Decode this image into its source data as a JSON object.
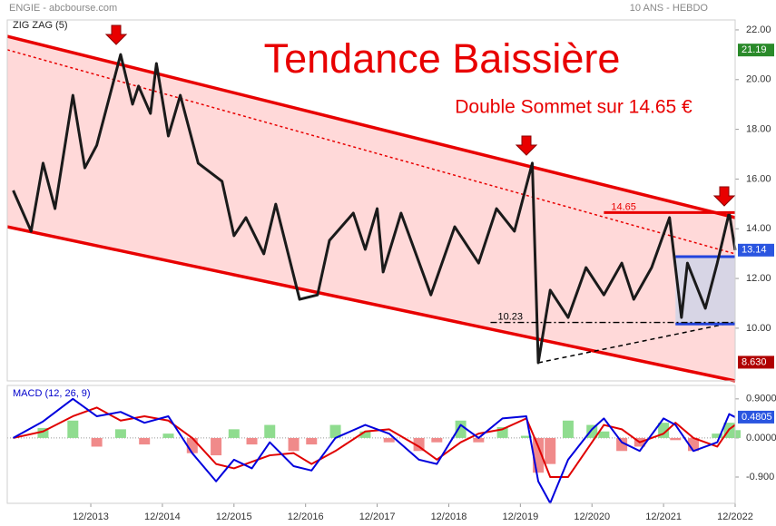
{
  "chart_data": [
    {
      "type": "line",
      "title": "Tendance Baissière",
      "subtitle": "Double Sommet sur 14.65 €",
      "source": "ENGIE - abcbourse.com",
      "period": "10 ANS - HEBDO",
      "indicator": "ZIG ZAG (5)",
      "x": [
        "11/2012",
        "02/2013",
        "04/2013",
        "06/2013",
        "09/2013",
        "11/2013",
        "01/2014",
        "05/2014",
        "07/2014",
        "08/2014",
        "10/2014",
        "11/2014",
        "01/2015",
        "03/2015",
        "06/2015",
        "10/2015",
        "12/2015",
        "02/2016",
        "05/2016",
        "07/2016",
        "11/2016",
        "02/2017",
        "04/2017",
        "08/2017",
        "10/2017",
        "12/2017",
        "01/2018",
        "04/2018",
        "09/2018",
        "01/2019",
        "05/2019",
        "08/2019",
        "11/2019",
        "02/2020",
        "03/2020",
        "05/2020",
        "08/2020",
        "11/2020",
        "02/2021",
        "05/2021",
        "07/2021",
        "10/2021",
        "01/2022",
        "03/2022",
        "04/2022",
        "07/2022",
        "09/2022",
        "11/2022",
        "12/2022"
      ],
      "series": [
        {
          "color": "#1a1a1a",
          "values": [
            15.54,
            13.9,
            16.64,
            14.81,
            19.37,
            16.45,
            17.36,
            21.01,
            19.01,
            19.74,
            18.64,
            20.65,
            17.73,
            19.37,
            16.64,
            15.91,
            13.72,
            14.45,
            12.99,
            14.99,
            11.16,
            11.34,
            13.53,
            14.63,
            13.17,
            14.81,
            12.26,
            14.63,
            11.34,
            14.08,
            12.62,
            14.81,
            13.9,
            16.64,
            8.61,
            11.53,
            10.43,
            12.44,
            11.34,
            12.62,
            11.16,
            12.44,
            14.45,
            10.43,
            12.62,
            10.8,
            12.62,
            14.65,
            13.14
          ]
        }
      ],
      "xlim": [
        "10/2012",
        "12/2022"
      ],
      "ylim": [
        7.88,
        22.4
      ],
      "yticks": [
        {
          "value": 22,
          "label": "22.00"
        },
        {
          "value": 20,
          "label": "20.00"
        },
        {
          "value": 18,
          "label": "18.00"
        },
        {
          "value": 16,
          "label": "16.00"
        },
        {
          "value": 14,
          "label": "14.00"
        },
        {
          "value": 12,
          "label": "12.00"
        },
        {
          "value": 10,
          "label": "10.00"
        }
      ],
      "channel_fill": "#ffd9d9",
      "trendlines": [
        {
          "x": [
            "10/2012",
            "12/2022"
          ],
          "y": [
            21.74,
            14.45
          ],
          "color": "#e80000",
          "style": "solid"
        },
        {
          "x": [
            "10/2012",
            "12/2022"
          ],
          "y": [
            14.08,
            7.88
          ],
          "color": "#e80000",
          "style": "solid"
        },
        {
          "x": [
            "10/2012",
            "12/2022"
          ],
          "y": [
            21.2,
            12.99
          ],
          "color": "#e80000",
          "style": "dotted"
        },
        {
          "x": [
            "03/2020",
            "12/2022"
          ],
          "y": [
            8.61,
            10.25
          ],
          "color": "#000000",
          "style": "dashed"
        }
      ],
      "levels": [
        {
          "value": 14.65,
          "x": [
            "02/2021",
            "12/2022"
          ],
          "color": "#e80000",
          "style": "solid"
        },
        {
          "value": 10.23,
          "x": [
            "07/2019",
            "12/2022"
          ],
          "color": "#000000",
          "style": "dashdot"
        }
      ],
      "box": {
        "x": [
          "02/2022",
          "12/2022"
        ],
        "y": [
          10.17,
          12.88
        ],
        "color": "#2244dd"
      },
      "price_markers": [
        {
          "value": 21.19,
          "color": "#2a8a2a"
        },
        {
          "value": 13.14,
          "color": "#2a55e0"
        },
        {
          "value": 8.63,
          "label": "8.630",
          "color": "#b00000"
        }
      ]
    },
    {
      "type": "line",
      "title": "MACD (12, 26, 9)",
      "x": [
        "11/2012",
        "04/2013",
        "09/2013",
        "01/2014",
        "05/2014",
        "09/2014",
        "01/2015",
        "05/2015",
        "09/2015",
        "12/2015",
        "03/2016",
        "06/2016",
        "10/2016",
        "01/2017",
        "05/2017",
        "10/2017",
        "02/2018",
        "07/2018",
        "10/2018",
        "02/2019",
        "05/2019",
        "09/2019",
        "01/2020",
        "03/2020",
        "05/2020",
        "08/2020",
        "12/2020",
        "02/2021",
        "05/2021",
        "08/2021",
        "12/2021",
        "02/2022",
        "05/2022",
        "09/2022",
        "11/2022",
        "12/2022"
      ],
      "series": [
        {
          "type": "bar",
          "color": "#8fdc8f",
          "negative_color": "#f08a8a",
          "values": [
            0,
            0.23,
            0.4,
            -0.2,
            0.2,
            -0.15,
            0.1,
            -0.35,
            -0.4,
            0.2,
            -0.15,
            0.3,
            -0.3,
            -0.15,
            0.3,
            0.15,
            -0.1,
            -0.3,
            -0.1,
            0.4,
            -0.1,
            0.25,
            0.05,
            -0.8,
            -0.6,
            0.4,
            0.3,
            0.15,
            -0.3,
            -0.2,
            0.35,
            -0.05,
            -0.3,
            0.1,
            0.35,
            0.18
          ]
        },
        {
          "color": "#e00000",
          "values": [
            0,
            0.15,
            0.5,
            0.7,
            0.4,
            0.5,
            0.4,
            0,
            -0.6,
            -0.7,
            -0.55,
            -0.4,
            -0.35,
            -0.6,
            -0.3,
            0.15,
            0.2,
            -0.2,
            -0.5,
            -0.1,
            0.1,
            0.2,
            0.45,
            -0.2,
            -0.9,
            -0.9,
            -0.1,
            0.3,
            0.2,
            -0.1,
            0.1,
            0.35,
            0,
            -0.2,
            0.2,
            0.3
          ]
        },
        {
          "color": "#0000dd",
          "values": [
            0,
            0.38,
            0.9,
            0.5,
            0.6,
            0.35,
            0.5,
            -0.35,
            -1,
            -0.5,
            -0.7,
            -0.1,
            -0.65,
            -0.75,
            0,
            0.3,
            0.1,
            -0.5,
            -0.6,
            0.3,
            0,
            0.45,
            0.5,
            -1,
            -1.5,
            -0.5,
            0.2,
            0.45,
            -0.1,
            -0.3,
            0.45,
            0.3,
            -0.3,
            -0.1,
            0.55,
            0.48
          ]
        }
      ],
      "xlim": [
        "10/2012",
        "12/2022"
      ],
      "ylim": [
        -1.506,
        1.21
      ],
      "yticks": [
        {
          "value": 0.9,
          "label": "0.9000"
        },
        {
          "value": 0,
          "label": "0.0000"
        },
        {
          "value": -0.9,
          "label": "-0.900"
        }
      ],
      "xticks": [
        "12/2013",
        "12/2014",
        "12/2015",
        "12/2016",
        "12/2017",
        "12/2018",
        "12/2019",
        "12/2020",
        "12/2021",
        "12/2022"
      ],
      "price_markers": [
        {
          "value": 0.4805,
          "color": "#2a55e0"
        }
      ]
    }
  ]
}
